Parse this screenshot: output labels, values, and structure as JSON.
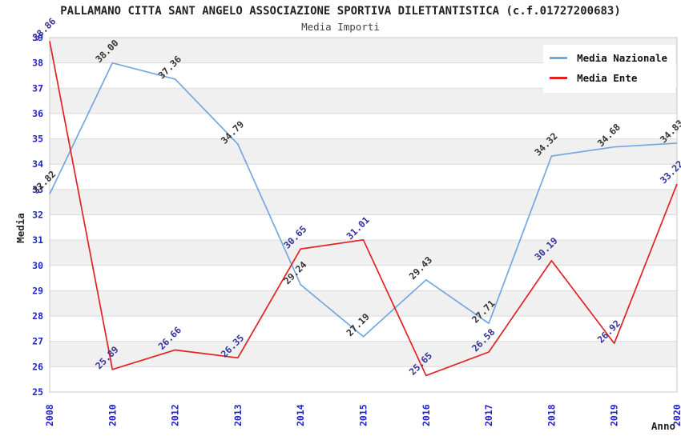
{
  "header": {
    "title": "PALLAMANO CITTA SANT ANGELO ASSOCIAZIONE SPORTIVA DILETTANTISTICA (c.f.01727200683)",
    "subtitle": "Media Importi"
  },
  "chart_data": {
    "type": "line",
    "title": "PALLAMANO CITTA SANT ANGELO ASSOCIAZIONE SPORTIVA DILETTANTISTICA (c.f.01727200683)",
    "subtitle": "Media Importi",
    "xlabel": "Anno",
    "ylabel": "Media",
    "categories": [
      "2008",
      "2010",
      "2012",
      "2013",
      "2014",
      "2015",
      "2016",
      "2017",
      "2018",
      "2019",
      "2020"
    ],
    "series": [
      {
        "name": "Media Nazionale",
        "color": "#74A7E0",
        "label_color": "#333333",
        "values": [
          32.82,
          38.0,
          37.36,
          34.79,
          29.24,
          27.19,
          29.43,
          27.71,
          34.32,
          34.68,
          34.83
        ]
      },
      {
        "name": "Media Ente",
        "color": "#E02222",
        "label_color": "#333399",
        "values": [
          38.86,
          25.89,
          26.66,
          26.35,
          30.65,
          31.01,
          25.65,
          26.58,
          30.19,
          26.92,
          33.22
        ]
      }
    ],
    "ylim": [
      25,
      39
    ],
    "ytick_step": 1,
    "legend_position": "top-right",
    "grid": "horizontal-bands",
    "colors": {
      "tick_label": "#2222CC",
      "band_gray": "#F0F0F0",
      "gridline": "#DCDCDC",
      "plot_border": "#C8C8C8"
    }
  }
}
